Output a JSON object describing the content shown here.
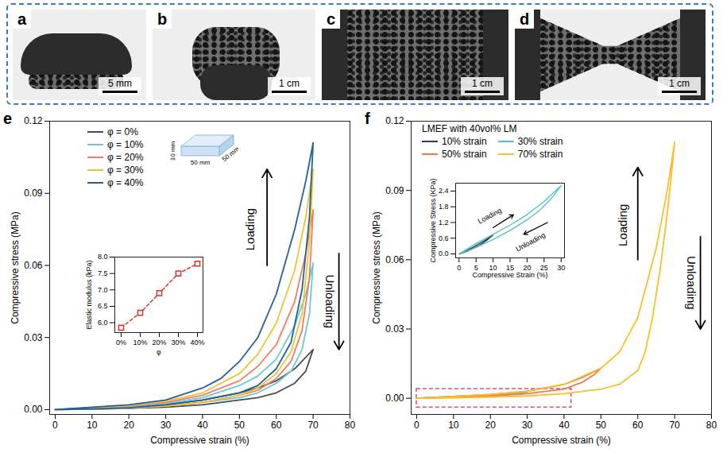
{
  "photo_panels": [
    {
      "label": "a",
      "scale_bar": "5 mm"
    },
    {
      "label": "b",
      "scale_bar": "1 cm"
    },
    {
      "label": "c",
      "scale_bar": "1 cm"
    },
    {
      "label": "d",
      "scale_bar": "1 cm"
    }
  ],
  "chart_data": [
    {
      "panel": "e",
      "type": "line",
      "x_label": "Compressive strain (%)",
      "y_label": "Compressive stress (MPa)",
      "xlim": [
        -1.5,
        80
      ],
      "xticks": [
        0,
        10,
        20,
        30,
        40,
        50,
        60,
        70,
        80
      ],
      "ylim": [
        -0.002,
        0.12
      ],
      "yticks": [
        {
          "value": 0,
          "label": "0.00"
        },
        0.03,
        0.06,
        0.09,
        0.12
      ],
      "legend": "upper left",
      "series": [
        {
          "name": "φ = 0%",
          "color": "#4a4a58",
          "x": [
            0,
            10,
            20,
            30,
            40,
            50,
            55,
            60,
            65,
            70,
            68,
            65,
            60,
            55,
            50,
            40,
            30,
            20,
            10,
            0
          ],
          "values": [
            0,
            0.0005,
            0.001,
            0.002,
            0.004,
            0.007,
            0.009,
            0.012,
            0.017,
            0.025,
            0.016,
            0.011,
            0.007,
            0.005,
            0.004,
            0.002,
            0.001,
            0.0005,
            0.0002,
            0
          ]
        },
        {
          "name": "φ = 10%",
          "color": "#6cc7d8",
          "x": [
            0,
            10,
            20,
            30,
            40,
            50,
            55,
            60,
            65,
            68,
            70,
            69,
            67,
            64,
            60,
            55,
            50,
            40,
            30,
            20,
            10,
            0
          ],
          "values": [
            0,
            0.0006,
            0.0012,
            0.0025,
            0.005,
            0.01,
            0.014,
            0.021,
            0.035,
            0.048,
            0.061,
            0.04,
            0.025,
            0.016,
            0.011,
            0.007,
            0.005,
            0.003,
            0.0015,
            0.0006,
            0.0002,
            0
          ]
        },
        {
          "name": "φ = 20%",
          "color": "#f07e5e",
          "x": [
            0,
            10,
            20,
            30,
            40,
            50,
            55,
            60,
            65,
            68,
            70,
            69,
            67,
            64,
            60,
            55,
            50,
            40,
            30,
            20,
            10,
            0
          ],
          "values": [
            0,
            0.0007,
            0.0015,
            0.003,
            0.006,
            0.012,
            0.018,
            0.027,
            0.045,
            0.065,
            0.083,
            0.055,
            0.033,
            0.02,
            0.013,
            0.008,
            0.006,
            0.003,
            0.0015,
            0.0007,
            0.0002,
            0
          ]
        },
        {
          "name": "φ = 30%",
          "color": "#f2c22e",
          "x": [
            0,
            10,
            20,
            30,
            40,
            50,
            55,
            60,
            65,
            68,
            70,
            69,
            67,
            64,
            60,
            55,
            50,
            40,
            30,
            20,
            10,
            0
          ],
          "values": [
            0,
            0.0008,
            0.0017,
            0.0035,
            0.007,
            0.015,
            0.023,
            0.036,
            0.058,
            0.08,
            0.1,
            0.07,
            0.04,
            0.024,
            0.015,
            0.009,
            0.006,
            0.003,
            0.0015,
            0.0007,
            0.0002,
            0
          ]
        },
        {
          "name": "φ = 40%",
          "color": "#1f5f9f",
          "x": [
            0,
            10,
            20,
            30,
            40,
            45,
            50,
            55,
            60,
            65,
            68,
            70,
            69,
            67,
            64,
            60,
            55,
            50,
            40,
            30,
            20,
            10,
            0
          ],
          "values": [
            0,
            0.001,
            0.002,
            0.004,
            0.009,
            0.013,
            0.02,
            0.03,
            0.048,
            0.075,
            0.095,
            0.111,
            0.08,
            0.05,
            0.028,
            0.017,
            0.01,
            0.007,
            0.004,
            0.002,
            0.0008,
            0.0003,
            0
          ]
        }
      ],
      "annotations": [
        {
          "text": "Loading",
          "x": 53,
          "y": 0.075,
          "arrow": {
            "x1": 57.5,
            "y1": 0.06,
            "x2": 57.5,
            "y2": 0.1
          }
        },
        {
          "text": "Unloading",
          "x": 74.5,
          "y": 0.045,
          "arrow": {
            "x1": 77,
            "y1": 0.065,
            "x2": 77,
            "y2": 0.025
          }
        }
      ],
      "sample_dimensions": [
        "10 mm",
        "50 mm",
        "50 mm"
      ],
      "inset": {
        "type": "line",
        "x_label": "φ",
        "y_label": "Elastic modulus (kPa)",
        "categories": [
          "0%",
          "10%",
          "20%",
          "30%",
          "40%"
        ],
        "values": [
          5.85,
          6.3,
          6.9,
          7.5,
          7.8
        ],
        "color": "#e0302a",
        "marker": "square",
        "line_style": "dashed",
        "ylim": [
          5.7,
          8.0
        ],
        "yticks": [
          {
            "value": 6,
            "label": "6.0"
          },
          6.5,
          {
            "value": 7,
            "label": "7.0"
          },
          7.5,
          {
            "value": 8,
            "label": "8.0"
          }
        ]
      }
    },
    {
      "panel": "f",
      "type": "line",
      "x_label": "Compressive strain (%)",
      "y_label": "Compressive stress (MPa)",
      "xlim": [
        -1.5,
        80
      ],
      "xticks": [
        0,
        10,
        20,
        30,
        40,
        50,
        60,
        70,
        80
      ],
      "ylim": [
        -0.007,
        0.12
      ],
      "yticks": [
        {
          "value": 0,
          "label": "0.00"
        },
        0.03,
        0.06,
        0.09,
        0.12
      ],
      "legend": "upper left",
      "legend_title": "LMEF with 40vol% LM",
      "series": [
        {
          "name": "10% strain",
          "color": "#2b3a67",
          "x": [
            0,
            5,
            10,
            5,
            0
          ],
          "values": [
            0,
            0.0003,
            0.0007,
            0.0003,
            0
          ]
        },
        {
          "name": "30% strain",
          "color": "#4fc1c0",
          "x": [
            0,
            10,
            20,
            30,
            20,
            10,
            0
          ],
          "values": [
            0,
            0.0008,
            0.0015,
            0.0026,
            0.0013,
            0.0006,
            0
          ]
        },
        {
          "name": "50% strain",
          "color": "#f07850",
          "x": [
            0,
            10,
            20,
            30,
            40,
            45,
            50,
            48,
            45,
            40,
            30,
            20,
            10,
            0
          ],
          "values": [
            0,
            0.0008,
            0.0016,
            0.003,
            0.006,
            0.009,
            0.013,
            0.01,
            0.007,
            0.004,
            0.002,
            0.001,
            0.0004,
            0
          ]
        },
        {
          "name": "70% strain",
          "color": "#f5c02a",
          "x": [
            0,
            10,
            20,
            30,
            40,
            50,
            55,
            60,
            65,
            68,
            70,
            69,
            68,
            66,
            64,
            62,
            60,
            55,
            50,
            40,
            30,
            20,
            10,
            0
          ],
          "values": [
            0,
            0.0008,
            0.0016,
            0.003,
            0.006,
            0.013,
            0.02,
            0.035,
            0.065,
            0.09,
            0.111,
            0.095,
            0.08,
            0.055,
            0.035,
            0.02,
            0.012,
            0.006,
            0.004,
            0.002,
            0.001,
            0.0005,
            0.0002,
            0
          ]
        }
      ],
      "annotations": [
        {
          "text": "Loading",
          "x": 56,
          "y": 0.075,
          "arrow": {
            "x1": 60,
            "y1": 0.06,
            "x2": 60,
            "y2": 0.1
          }
        },
        {
          "text": "Unloading",
          "x": 74.5,
          "y": 0.05,
          "arrow": {
            "x1": 77,
            "y1": 0.07,
            "x2": 77,
            "y2": 0.03
          }
        }
      ],
      "inset_region": {
        "xlim": [
          0,
          42
        ],
        "ylim": [
          -0.004,
          0.004
        ]
      },
      "inset": {
        "type": "line",
        "x_label": "Compressive Strain (%)",
        "y_label": "Compressive Stress (KPa)",
        "xlim": [
          -1,
          31
        ],
        "xticks": [
          0,
          5,
          10,
          15,
          20,
          25,
          30
        ],
        "ylim": [
          -0.15,
          2.7
        ],
        "yticks": [
          {
            "value": 0,
            "label": "0.0"
          },
          0.6,
          1.2,
          1.8,
          2.4
        ],
        "series": [
          {
            "name": "10% strain",
            "color": "#2b3a67",
            "x": [
              0,
              2,
              4,
              6,
              8,
              10,
              8,
              6,
              4,
              2,
              0
            ],
            "values": [
              0,
              0.12,
              0.25,
              0.4,
              0.55,
              0.72,
              0.5,
              0.33,
              0.2,
              0.08,
              0
            ]
          },
          {
            "name": "30% strain",
            "color": "#4fc1c0",
            "x": [
              0,
              5,
              10,
              15,
              20,
              25,
              30,
              27,
              24,
              20,
              15,
              10,
              5,
              0
            ],
            "values": [
              0,
              0.4,
              0.75,
              1.1,
              1.5,
              2.0,
              2.6,
              2.1,
              1.7,
              1.3,
              0.9,
              0.55,
              0.25,
              0
            ]
          }
        ],
        "annotations": [
          {
            "text": "Loading",
            "x": 9,
            "y": 1.45,
            "arrow": {
              "x1": 10,
              "y1": 1.0,
              "x2": 16,
              "y2": 1.5
            }
          },
          {
            "text": "Unloading",
            "x": 21,
            "y": 0.45,
            "arrow": {
              "x1": 26,
              "y1": 1.2,
              "x2": 19,
              "y2": 0.75
            }
          }
        ]
      }
    }
  ]
}
